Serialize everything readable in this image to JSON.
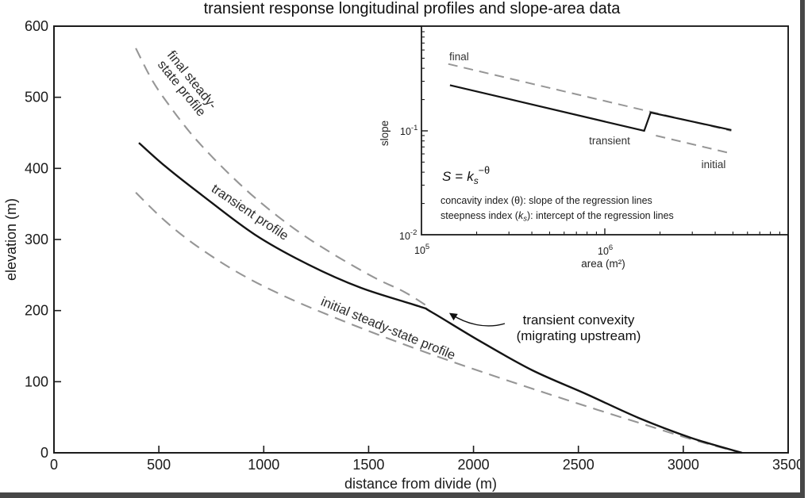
{
  "figure_title": "transient response longitudinal profiles and slope-area data",
  "chart_data": [
    {
      "id": "main",
      "type": "line",
      "xlabel": "distance from divide (m)",
      "ylabel": "elevation (m)",
      "xlim": [
        0,
        3500
      ],
      "ylim": [
        0,
        600
      ],
      "xticks": [
        0,
        500,
        1000,
        1500,
        2000,
        2500,
        3000,
        3500
      ],
      "yticks": [
        0,
        100,
        200,
        300,
        400,
        500,
        600
      ],
      "grid": false,
      "legend_position": "labels-on-curves",
      "series": [
        {
          "name": "final steady-state profile",
          "style": "dashed",
          "color": "#969696",
          "points": [
            [
              390,
              569
            ],
            [
              470,
              523
            ],
            [
              556,
              486
            ],
            [
              650,
              450
            ],
            [
              745,
              419
            ],
            [
              850,
              388
            ],
            [
              953,
              360
            ],
            [
              1065,
              333
            ],
            [
              1180,
              308
            ],
            [
              1300,
              285
            ],
            [
              1426,
              263
            ],
            [
              1550,
              243
            ],
            [
              1672,
              226
            ],
            [
              1786,
              205
            ]
          ]
        },
        {
          "name": "initial steady-state profile",
          "style": "dashed",
          "color": "#969696",
          "points": [
            [
              390,
              366
            ],
            [
              530,
              326
            ],
            [
              680,
              291
            ],
            [
              880,
              253
            ],
            [
              1100,
              220
            ],
            [
              1340,
              190
            ],
            [
              1600,
              160
            ],
            [
              1880,
              130
            ],
            [
              2190,
              99
            ],
            [
              2490,
              70
            ],
            [
              2790,
              42
            ],
            [
              3040,
              19
            ],
            [
              3250,
              2
            ]
          ]
        },
        {
          "name": "transient profile",
          "style": "solid",
          "color": "#141414",
          "points": [
            [
              405,
              436
            ],
            [
              530,
              403
            ],
            [
              707,
              362
            ],
            [
              957,
              307
            ],
            [
              1211,
              265
            ],
            [
              1464,
              232
            ],
            [
              1740,
              206
            ],
            [
              1800,
              198
            ],
            [
              2031,
              157
            ],
            [
              2281,
              116
            ],
            [
              2535,
              83
            ],
            [
              2788,
              49
            ],
            [
              3038,
              21
            ],
            [
              3280,
              0
            ]
          ]
        }
      ],
      "curve_labels": {
        "final_line1": "final steady-",
        "final_line2": "state profile",
        "transient": "transient profile",
        "initial": "initial steady-state profile"
      },
      "annotation": {
        "line1": "transient convexity",
        "line2": "(migrating upstream)"
      }
    },
    {
      "id": "inset",
      "type": "line",
      "xscale": "log",
      "yscale": "log",
      "xlabel": "area (m²)",
      "ylabel": "slope",
      "xlim": [
        100000,
        10000000
      ],
      "ylim": [
        0.01,
        1.02
      ],
      "xtick_labels": [
        "10^5",
        "10^6"
      ],
      "ytick_labels": [
        "10^-1",
        "10^-2"
      ],
      "grid": false,
      "series": [
        {
          "name": "final",
          "style": "dashed",
          "color": "#969696",
          "points": [
            [
              140000,
              0.44
            ],
            [
              4900000,
              0.1
            ]
          ]
        },
        {
          "name": "transient",
          "style": "solid",
          "color": "#141414",
          "points": [
            [
              143000,
              0.275
            ],
            [
              1640000,
              0.1
            ],
            [
              1780000,
              0.15
            ],
            [
              4900000,
              0.102
            ]
          ]
        },
        {
          "name": "initial",
          "style": "dashed",
          "color": "#969696",
          "points": [
            [
              1900000,
              0.09
            ],
            [
              4800000,
              0.061
            ]
          ]
        }
      ],
      "line_labels": {
        "final": "final",
        "transient": "transient",
        "initial": "initial"
      },
      "equation": {
        "lhs": "S",
        "rel": "=",
        "base": "k",
        "sub": "s",
        "sup": "−θ"
      },
      "caption_concavity": "concavity index (θ): slope of the regression lines",
      "caption_steepness": {
        "pre": "steepness index (",
        "k": "k",
        "sub": "s",
        "post": "): intercept of the regression lines"
      }
    }
  ]
}
